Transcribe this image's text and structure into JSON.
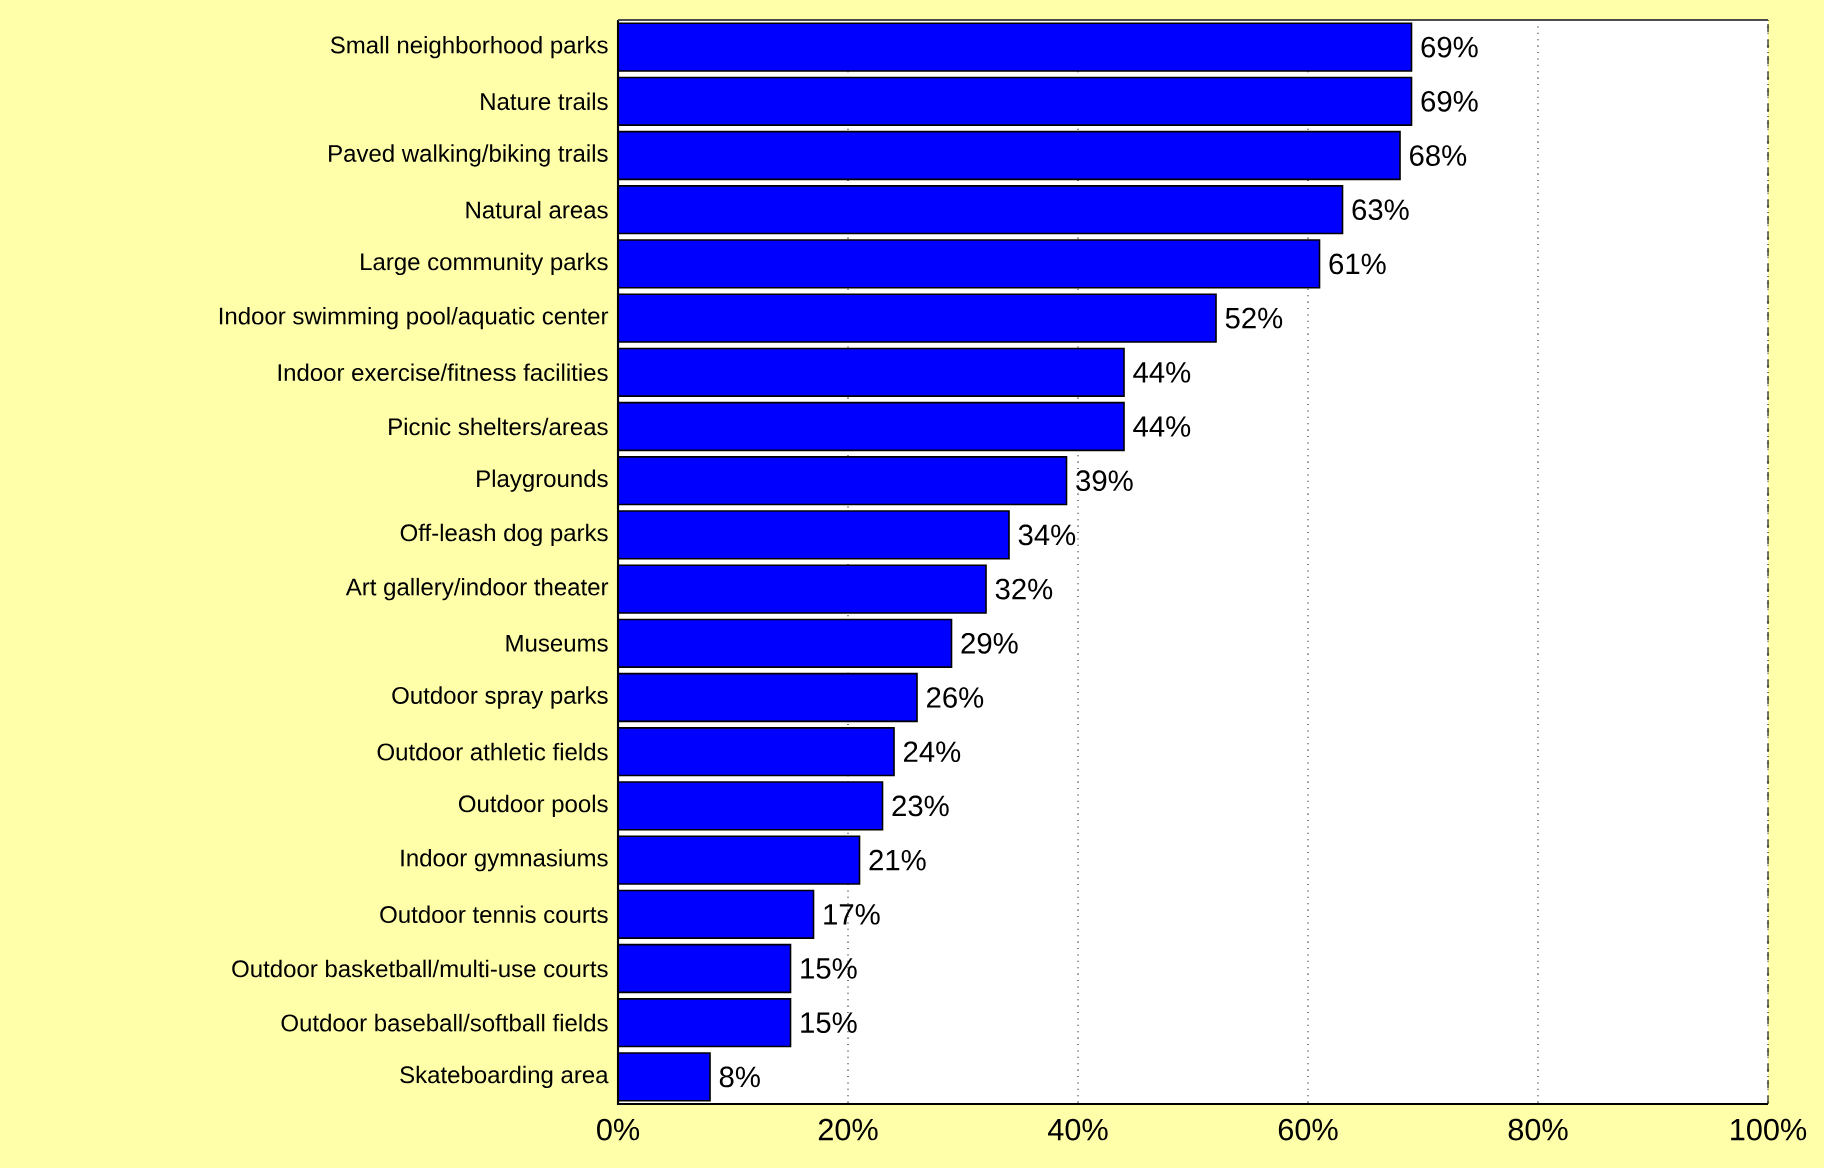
{
  "chart_data": {
    "type": "bar",
    "orientation": "horizontal",
    "categories": [
      "Small neighborhood parks",
      "Nature trails",
      "Paved walking/biking trails",
      "Natural areas",
      "Large community parks",
      "Indoor swimming pool/aquatic center",
      "Indoor exercise/fitness facilities",
      "Picnic shelters/areas",
      "Playgrounds",
      "Off-leash dog parks",
      "Art gallery/indoor theater",
      "Museums",
      "Outdoor spray parks",
      "Outdoor athletic fields",
      "Outdoor pools",
      "Indoor gymnasiums",
      "Outdoor tennis courts",
      "Outdoor basketball/multi-use courts",
      "Outdoor baseball/softball fields",
      "Skateboarding area"
    ],
    "values": [
      69,
      69,
      68,
      63,
      61,
      52,
      44,
      44,
      39,
      34,
      32,
      29,
      26,
      24,
      23,
      21,
      17,
      15,
      15,
      8
    ],
    "value_labels": [
      "69%",
      "69%",
      "68%",
      "63%",
      "61%",
      "52%",
      "44%",
      "44%",
      "39%",
      "34%",
      "32%",
      "29%",
      "26%",
      "24%",
      "23%",
      "21%",
      "17%",
      "15%",
      "15%",
      "8%"
    ],
    "color": "#0000ff",
    "xlim": [
      0,
      100
    ],
    "xticks": [
      {
        "value": 0,
        "label": "0%"
      },
      {
        "value": 20,
        "label": "20%"
      },
      {
        "value": 40,
        "label": "40%"
      },
      {
        "value": 60,
        "label": "60%"
      },
      {
        "value": 80,
        "label": "80%"
      },
      {
        "value": 100,
        "label": "100%"
      }
    ],
    "grid": "x"
  }
}
